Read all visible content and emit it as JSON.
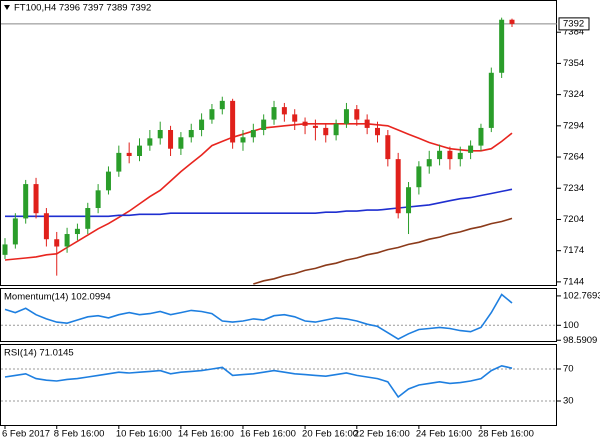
{
  "chart_data": [
    {
      "type": "candlestick",
      "title": "FT100,H4  7396 7397 7389 7392",
      "categories": [
        "6 Feb 2017",
        null,
        null,
        null,
        null,
        "8 Feb 16:00",
        null,
        null,
        null,
        null,
        null,
        "10 Feb 16:00",
        null,
        null,
        null,
        null,
        null,
        "14 Feb 16:00",
        null,
        null,
        null,
        null,
        null,
        "16 Feb 16:00",
        null,
        null,
        null,
        null,
        null,
        "20 Feb 16:00",
        null,
        null,
        null,
        null,
        "22 Feb 16:00",
        null,
        null,
        null,
        null,
        null,
        "24 Feb 16:00",
        null,
        null,
        null,
        null,
        null,
        "28 Feb 16:00",
        null,
        null,
        null
      ],
      "candles": [
        [
          7170,
          7186,
          7166,
          7180
        ],
        [
          7180,
          7210,
          7176,
          7205
        ],
        [
          7205,
          7242,
          7200,
          7238
        ],
        [
          7238,
          7244,
          7205,
          7210
        ],
        [
          7210,
          7215,
          7178,
          7185
        ],
        [
          7185,
          7192,
          7150,
          7178
        ],
        [
          7178,
          7196,
          7172,
          7190
        ],
        [
          7190,
          7200,
          7184,
          7195
        ],
        [
          7195,
          7220,
          7190,
          7215
        ],
        [
          7215,
          7238,
          7210,
          7232
        ],
        [
          7232,
          7255,
          7228,
          7250
        ],
        [
          7250,
          7275,
          7245,
          7268
        ],
        [
          7268,
          7278,
          7258,
          7265
        ],
        [
          7265,
          7282,
          7260,
          7275
        ],
        [
          7275,
          7290,
          7270,
          7282
        ],
        [
          7282,
          7298,
          7276,
          7290
        ],
        [
          7290,
          7294,
          7265,
          7272
        ],
        [
          7272,
          7288,
          7266,
          7283
        ],
        [
          7283,
          7296,
          7278,
          7290
        ],
        [
          7290,
          7306,
          7284,
          7300
        ],
        [
          7300,
          7315,
          7296,
          7310
        ],
        [
          7310,
          7322,
          7305,
          7318
        ],
        [
          7318,
          7320,
          7272,
          7278
        ],
        [
          7278,
          7290,
          7270,
          7283
        ],
        [
          7283,
          7296,
          7278,
          7290
        ],
        [
          7290,
          7305,
          7285,
          7300
        ],
        [
          7300,
          7318,
          7295,
          7312
        ],
        [
          7312,
          7316,
          7298,
          7305
        ],
        [
          7305,
          7310,
          7290,
          7298
        ],
        [
          7298,
          7302,
          7286,
          7294
        ],
        [
          7294,
          7300,
          7280,
          7292
        ],
        [
          7292,
          7296,
          7278,
          7285
        ],
        [
          7285,
          7300,
          7280,
          7296
        ],
        [
          7296,
          7316,
          7292,
          7310
        ],
        [
          7310,
          7314,
          7294,
          7300
        ],
        [
          7300,
          7305,
          7286,
          7292
        ],
        [
          7292,
          7298,
          7278,
          7285
        ],
        [
          7285,
          7290,
          7255,
          7262
        ],
        [
          7262,
          7268,
          7205,
          7210
        ],
        [
          7210,
          7240,
          7190,
          7235
        ],
        [
          7235,
          7260,
          7228,
          7255
        ],
        [
          7255,
          7270,
          7248,
          7262
        ],
        [
          7262,
          7276,
          7256,
          7270
        ],
        [
          7270,
          7274,
          7252,
          7262
        ],
        [
          7262,
          7274,
          7255,
          7268
        ],
        [
          7268,
          7280,
          7262,
          7275
        ],
        [
          7275,
          7296,
          7270,
          7292
        ],
        [
          7292,
          7350,
          7288,
          7345
        ],
        [
          7345,
          7398,
          7340,
          7396
        ],
        [
          7396,
          7397,
          7389,
          7392
        ]
      ],
      "up_color": "#2a9d2a",
      "down_color": "#e0201b",
      "series": [
        {
          "color": "#e8251f",
          "values": [
            7165,
            7166,
            7167,
            7168,
            7170,
            7171,
            7177,
            7183,
            7189,
            7195,
            7200,
            7206,
            7212,
            7219,
            7226,
            7232,
            7241,
            7250,
            7258,
            7266,
            7275,
            7279,
            7283,
            7286,
            7289,
            7292,
            7293,
            7294,
            7295,
            7296,
            7296,
            7296,
            7296,
            7296,
            7296,
            7296,
            7295,
            7294,
            7290,
            7286,
            7282,
            7278,
            7275,
            7272,
            7271,
            7270,
            7270,
            7272,
            7279,
            7287
          ]
        },
        {
          "color": "#1f2fd0",
          "values": [
            7207,
            7207,
            7207,
            7207,
            7207,
            7207,
            7207,
            7207,
            7207,
            7207,
            7207,
            7208,
            7208,
            7209,
            7209,
            7209,
            7210,
            7210,
            7210,
            7210,
            7210,
            7210,
            7210,
            7210,
            7210,
            7210,
            7210,
            7210,
            7210,
            7210,
            7210,
            7211,
            7211,
            7212,
            7212,
            7213,
            7213,
            7214,
            7215,
            7216,
            7217,
            7218,
            7220,
            7222,
            7224,
            7225,
            7227,
            7229,
            7231,
            7233
          ]
        },
        {
          "color": "#8b3a1a",
          "values": [
            null,
            null,
            null,
            null,
            null,
            null,
            null,
            null,
            null,
            null,
            null,
            null,
            null,
            null,
            null,
            null,
            null,
            null,
            null,
            null,
            null,
            null,
            null,
            null,
            7142,
            7145,
            7147,
            7150,
            7152,
            7155,
            7157,
            7160,
            7162,
            7165,
            7167,
            7170,
            7172,
            7175,
            7177,
            7180,
            7182,
            7185,
            7187,
            7190,
            7192,
            7195,
            7197,
            7200,
            7202,
            7205
          ]
        }
      ],
      "last_price": 7392,
      "ylim": [
        7141,
        7414
      ],
      "yticks": [
        7384,
        7354,
        7324,
        7294,
        7264,
        7234,
        7204,
        7174,
        7144
      ]
    },
    {
      "type": "line",
      "title": "Momentum(14) 102.0994",
      "color": "#1e7fe0",
      "values": [
        101.5,
        101.2,
        101.6,
        101.0,
        100.6,
        100.3,
        100.2,
        100.5,
        100.8,
        100.9,
        100.7,
        101.0,
        101.2,
        101.0,
        101.1,
        101.3,
        101.0,
        101.2,
        101.4,
        101.3,
        101.1,
        100.4,
        100.3,
        100.4,
        100.6,
        100.5,
        100.9,
        101.0,
        100.8,
        100.4,
        100.3,
        100.5,
        100.7,
        100.6,
        100.4,
        100.1,
        99.9,
        99.3,
        98.7,
        99.2,
        99.6,
        99.7,
        99.8,
        99.7,
        99.5,
        99.4,
        99.8,
        101.2,
        102.9,
        102.1
      ],
      "ylim": [
        98.52,
        103.42
      ],
      "yticks": [
        102.7693,
        100,
        98.5909
      ],
      "levels": [
        100
      ]
    },
    {
      "type": "line",
      "title": "RSI(14) 71.0145",
      "color": "#1e7fe0",
      "values": [
        60,
        62,
        64,
        58,
        56,
        55,
        57,
        58,
        60,
        62,
        64,
        66,
        65,
        66,
        67,
        68,
        64,
        66,
        67,
        68,
        70,
        72,
        62,
        63,
        64,
        66,
        68,
        66,
        64,
        63,
        62,
        61,
        63,
        65,
        62,
        60,
        58,
        54,
        35,
        45,
        50,
        52,
        54,
        52,
        53,
        55,
        58,
        68,
        74,
        71
      ],
      "ylim": [
        0,
        100
      ],
      "yticks": [
        70,
        30
      ],
      "levels": [
        70,
        30
      ]
    }
  ]
}
